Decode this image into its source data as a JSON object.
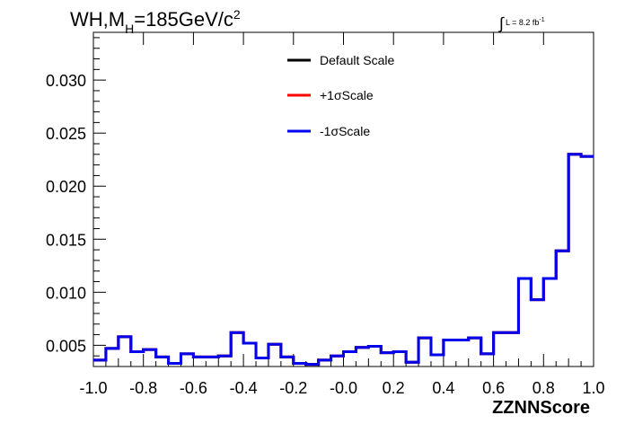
{
  "title": {
    "prefix": "WH,M",
    "sub": "H",
    "mid": "=185GeV/c",
    "sup": "2"
  },
  "luminosity": {
    "integral": "∫",
    "text": "L = 8.2 fb",
    "sup": "-1"
  },
  "chart_data": {
    "type": "line",
    "step": true,
    "xlabel": "ZZNNScore",
    "ylabel": "",
    "xlim": [
      -1.0,
      1.0
    ],
    "ylim": [
      0.003,
      0.0345
    ],
    "xticks": [
      "-1.0",
      "-0.8",
      "-0.6",
      "-0.4",
      "-0.2",
      "-0.0",
      "0.2",
      "0.4",
      "0.6",
      "0.8",
      "1.0"
    ],
    "yticks": [
      "0.005",
      "0.010",
      "0.015",
      "0.020",
      "0.025",
      "0.030"
    ],
    "bin_edges": [
      -1.0,
      -0.95,
      -0.9,
      -0.85,
      -0.8,
      -0.75,
      -0.7,
      -0.65,
      -0.6,
      -0.55,
      -0.5,
      -0.45,
      -0.4,
      -0.35,
      -0.3,
      -0.25,
      -0.2,
      -0.15,
      -0.1,
      -0.05,
      0.0,
      0.05,
      0.1,
      0.15,
      0.2,
      0.25,
      0.3,
      0.35,
      0.4,
      0.45,
      0.5,
      0.55,
      0.6,
      0.65,
      0.7,
      0.75,
      0.8,
      0.85,
      0.9,
      0.95,
      1.0
    ],
    "series": [
      {
        "name": "Default Scale",
        "color": "#000000",
        "values": [
          0.0036,
          0.0047,
          0.0058,
          0.0044,
          0.0046,
          0.0039,
          0.0033,
          0.0042,
          0.0039,
          0.0039,
          0.004,
          0.0062,
          0.0052,
          0.0038,
          0.0051,
          0.0039,
          0.0033,
          0.0032,
          0.0036,
          0.004,
          0.0044,
          0.0048,
          0.0049,
          0.0043,
          0.0044,
          0.0034,
          0.0057,
          0.0041,
          0.0055,
          0.0055,
          0.0057,
          0.0042,
          0.0062,
          0.0062,
          0.0113,
          0.0093,
          0.0113,
          0.0139,
          0.023,
          0.0228
        ]
      },
      {
        "name": "+1σScale",
        "color": "#ff0000",
        "values": [
          0.0036,
          0.0047,
          0.0058,
          0.0044,
          0.0046,
          0.0039,
          0.0033,
          0.0042,
          0.0039,
          0.0039,
          0.004,
          0.0062,
          0.0052,
          0.0038,
          0.0051,
          0.0039,
          0.0033,
          0.0032,
          0.0036,
          0.004,
          0.0044,
          0.0048,
          0.0049,
          0.0043,
          0.0044,
          0.0034,
          0.0057,
          0.0041,
          0.0055,
          0.0055,
          0.0057,
          0.0042,
          0.0062,
          0.0062,
          0.0113,
          0.0093,
          0.0113,
          0.0139,
          0.023,
          0.0228
        ]
      },
      {
        "name": "-1σScale",
        "color": "#0000ee",
        "values": [
          0.0036,
          0.0047,
          0.0058,
          0.0044,
          0.0046,
          0.0039,
          0.0033,
          0.0042,
          0.0039,
          0.0039,
          0.004,
          0.0062,
          0.0052,
          0.0038,
          0.0051,
          0.0039,
          0.0033,
          0.0032,
          0.0036,
          0.004,
          0.0044,
          0.0048,
          0.0049,
          0.0043,
          0.0044,
          0.0034,
          0.0057,
          0.0041,
          0.0055,
          0.0055,
          0.0057,
          0.0042,
          0.0062,
          0.0062,
          0.0113,
          0.0093,
          0.0113,
          0.0139,
          0.023,
          0.0228
        ]
      }
    ],
    "legend_position": "top-center",
    "grid": false
  }
}
